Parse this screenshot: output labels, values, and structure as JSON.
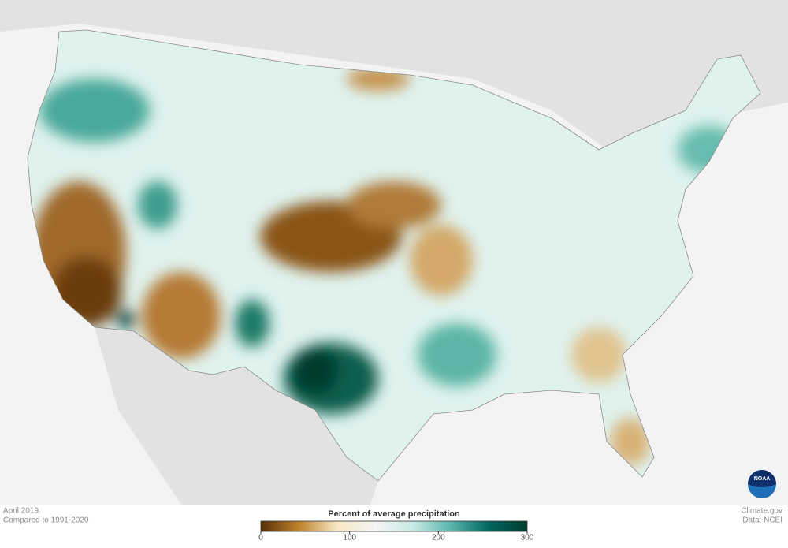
{
  "caption": {
    "date": "April 2019",
    "baseline": "Compared to 1991-2020"
  },
  "legend": {
    "title": "Percent of average precipitation",
    "range": [
      0,
      300
    ],
    "ticks": [
      0,
      100,
      200,
      300
    ],
    "colors": [
      "#543005",
      "#bf812d",
      "#f6e8c3",
      "#f5f5f5",
      "#c7eae5",
      "#5ab4ac",
      "#01665e",
      "#003c30"
    ]
  },
  "credits": {
    "site": "Climate.gov",
    "source": "Data: NCEI",
    "logo": "NOAA"
  }
}
